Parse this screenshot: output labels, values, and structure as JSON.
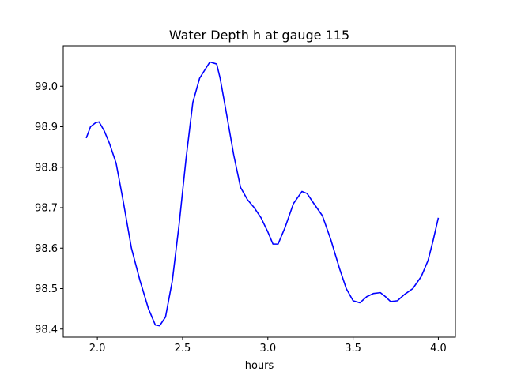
{
  "chart_data": {
    "type": "line",
    "title": "Water Depth h at gauge 115",
    "xlabel": "hours",
    "ylabel": "",
    "xlim": [
      1.8,
      4.1
    ],
    "ylim": [
      98.38,
      99.1
    ],
    "xticks": [
      2.0,
      2.5,
      3.0,
      3.5,
      4.0
    ],
    "xtick_labels": [
      "2.0",
      "2.5",
      "3.0",
      "3.5",
      "4.0"
    ],
    "yticks": [
      98.4,
      98.5,
      98.6,
      98.7,
      98.8,
      98.9,
      99.0
    ],
    "ytick_labels": [
      "98.4",
      "98.5",
      "98.6",
      "98.7",
      "98.8",
      "98.9",
      "99.0"
    ],
    "grid": false,
    "legend": "none",
    "series": [
      {
        "color": "#0000ff",
        "x": [
          1.935,
          1.96,
          1.99,
          2.01,
          2.04,
          2.07,
          2.11,
          2.15,
          2.2,
          2.25,
          2.3,
          2.34,
          2.365,
          2.4,
          2.44,
          2.48,
          2.52,
          2.56,
          2.6,
          2.63,
          2.66,
          2.7,
          2.72,
          2.75,
          2.8,
          2.84,
          2.88,
          2.92,
          2.96,
          3.0,
          3.03,
          3.06,
          3.1,
          3.15,
          3.2,
          3.23,
          3.27,
          3.32,
          3.37,
          3.42,
          3.46,
          3.5,
          3.54,
          3.58,
          3.62,
          3.66,
          3.69,
          3.72,
          3.76,
          3.8,
          3.85,
          3.9,
          3.94,
          3.97,
          4.0
        ],
        "y": [
          98.872,
          98.9,
          98.91,
          98.912,
          98.89,
          98.86,
          98.81,
          98.72,
          98.6,
          98.52,
          98.45,
          98.41,
          98.408,
          98.43,
          98.52,
          98.66,
          98.82,
          98.96,
          99.02,
          99.04,
          99.06,
          99.055,
          99.02,
          98.95,
          98.83,
          98.75,
          98.72,
          98.7,
          98.675,
          98.64,
          98.61,
          98.61,
          98.65,
          98.71,
          98.74,
          98.735,
          98.71,
          98.68,
          98.62,
          98.55,
          98.5,
          98.47,
          98.465,
          98.48,
          98.488,
          98.49,
          98.48,
          98.468,
          98.47,
          98.485,
          98.5,
          98.53,
          98.57,
          98.62,
          98.675
        ]
      }
    ]
  }
}
